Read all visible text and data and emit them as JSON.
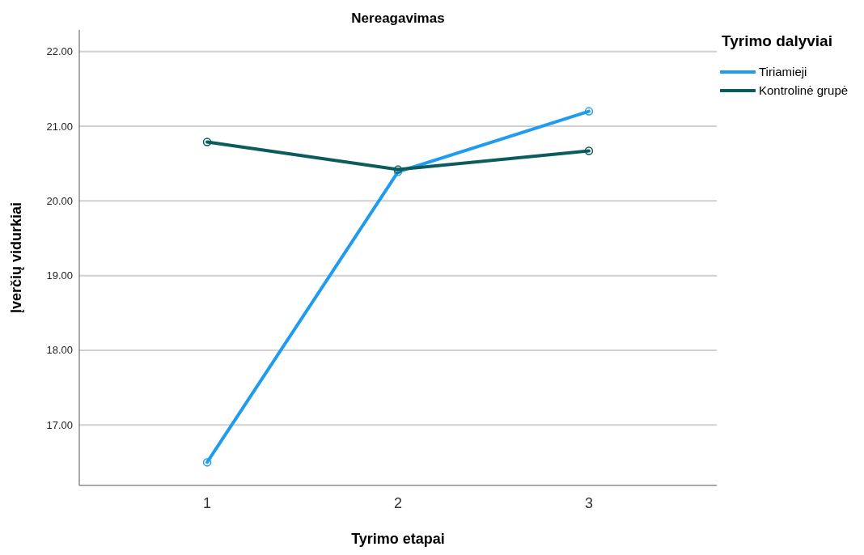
{
  "chart_data": {
    "type": "line",
    "title": "Nereagavimas",
    "xlabel": "Tyrimo etapai",
    "ylabel": "Įverčių vidurkiai",
    "legend_title": "Tyrimo dalyviai",
    "categories": [
      "1",
      "2",
      "3"
    ],
    "series": [
      {
        "name": "Tiriamieji",
        "color": "#1f9bef",
        "values": [
          16.5,
          20.39,
          21.2
        ]
      },
      {
        "name": "Kontrolinė grupė",
        "color": "#0b5c5c",
        "values": [
          20.79,
          20.42,
          20.67
        ]
      }
    ],
    "ylim": [
      16.19,
      22.29
    ],
    "yticks": [
      {
        "value": 17,
        "label": "17.00"
      },
      {
        "value": 18,
        "label": "18.00"
      },
      {
        "value": 19,
        "label": "19.00"
      },
      {
        "value": 20,
        "label": "20.00"
      },
      {
        "value": 21,
        "label": "21.00"
      },
      {
        "value": 22,
        "label": "22.00"
      }
    ],
    "grid": "y",
    "legend": "top right",
    "marker": "circle",
    "line_style": "solid"
  }
}
